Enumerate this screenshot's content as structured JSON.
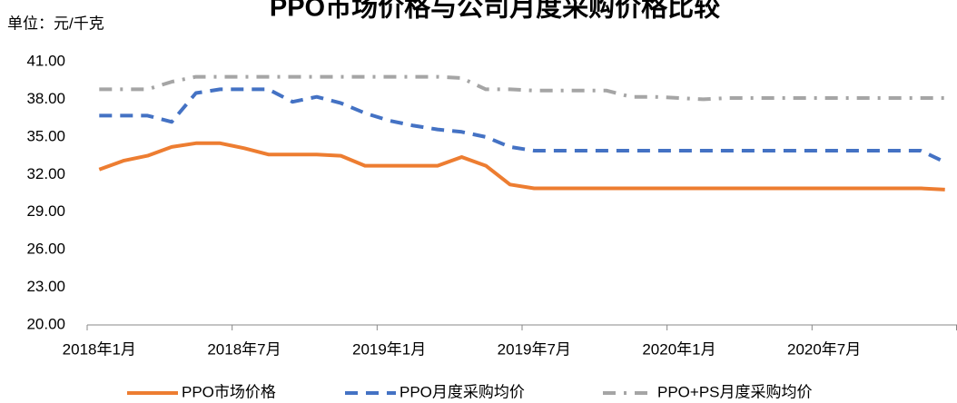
{
  "chart_data": {
    "type": "line",
    "title": "PPO市场价格与公司月度采购价格比较",
    "y_label": "单位：元/千克",
    "categories": [
      "2018年1月",
      null,
      null,
      null,
      null,
      null,
      "2018年7月",
      null,
      null,
      null,
      null,
      null,
      "2019年1月",
      null,
      null,
      null,
      null,
      null,
      "2019年7月",
      null,
      null,
      null,
      null,
      null,
      "2020年1月",
      null,
      null,
      null,
      null,
      null,
      "2020年7月",
      null,
      null,
      null,
      null,
      null
    ],
    "series": [
      {
        "name": "PPO市场价格",
        "color": "#ed7d31",
        "style": "solid",
        "values": [
          32.4,
          33.1,
          33.5,
          34.2,
          34.5,
          34.5,
          34.1,
          33.6,
          33.6,
          33.6,
          33.5,
          32.7,
          32.7,
          32.7,
          32.7,
          33.4,
          32.7,
          31.2,
          30.9,
          30.9,
          30.9,
          30.9,
          30.9,
          30.9,
          30.9,
          30.9,
          30.9,
          30.9,
          30.9,
          30.9,
          30.9,
          30.9,
          30.9,
          30.9,
          30.9,
          30.8
        ]
      },
      {
        "name": "PPO月度采购均价",
        "color": "#4472c4",
        "style": "dashed",
        "values": [
          36.7,
          36.7,
          36.7,
          36.2,
          38.5,
          38.8,
          38.8,
          38.8,
          37.8,
          38.2,
          37.7,
          36.9,
          36.3,
          35.9,
          35.6,
          35.4,
          35.0,
          34.2,
          33.9,
          33.9,
          33.9,
          33.9,
          33.9,
          33.9,
          33.9,
          33.9,
          33.9,
          33.9,
          33.9,
          33.9,
          33.9,
          33.9,
          33.9,
          33.9,
          33.9,
          33.0
        ]
      },
      {
        "name": "PPO+PS月度采购均价",
        "color": "#a5a5a5",
        "style": "dashdot",
        "values": [
          38.8,
          38.8,
          38.8,
          39.4,
          39.8,
          39.8,
          39.8,
          39.8,
          39.8,
          39.8,
          39.8,
          39.8,
          39.8,
          39.8,
          39.8,
          39.7,
          38.8,
          38.8,
          38.7,
          38.7,
          38.7,
          38.7,
          38.2,
          38.2,
          38.1,
          38.0,
          38.1,
          38.1,
          38.1,
          38.1,
          38.1,
          38.1,
          38.1,
          38.1,
          38.1,
          38.1
        ]
      }
    ],
    "ylim": [
      20,
      41
    ],
    "yticks": [
      {
        "value": 20,
        "label": "20.00"
      },
      {
        "value": 23,
        "label": "23.00"
      },
      {
        "value": 26,
        "label": "26.00"
      },
      {
        "value": 29,
        "label": "29.00"
      },
      {
        "value": 32,
        "label": "32.00"
      },
      {
        "value": 35,
        "label": "35.00"
      },
      {
        "value": 38,
        "label": "38.00"
      },
      {
        "value": 41,
        "label": "41.00"
      }
    ],
    "grid": false,
    "legend": "bottom"
  }
}
